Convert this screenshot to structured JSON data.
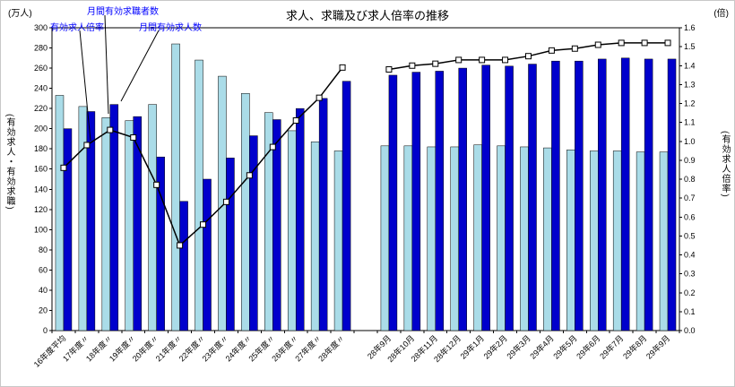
{
  "title": "求人、求職及び求人倍率の推移",
  "axis_units": {
    "left": "(万人)",
    "right": "(倍)"
  },
  "axis_titles": {
    "left": "(有効求人・有効求職)",
    "right": "(有効求人倍率)"
  },
  "annotations": {
    "seekers": "月間有効求職者数",
    "ratio": "有効求人倍率",
    "openings": "月間有効求人数"
  },
  "colors": {
    "seekers_bar": "#aadce8",
    "openings_bar": "#0000cc",
    "ratio_line": "#000000",
    "marker_fill": "#ffffff",
    "annotation_text": "#0000ff",
    "axis": "#000000"
  },
  "chart_data": {
    "type": "bar+line",
    "title": "求人、求職及び求人倍率の推移",
    "left_axis": {
      "label": "(有効求人・有効求職)",
      "unit": "(万人)",
      "min": 0,
      "max": 300,
      "step": 20
    },
    "right_axis": {
      "label": "(有効求人倍率)",
      "unit": "(倍)",
      "min": 0.0,
      "max": 1.6,
      "step": 0.1
    },
    "series_meta": [
      {
        "key": "seekers",
        "name": "月間有効求職者数",
        "type": "bar",
        "axis": "left",
        "color": "#aadce8"
      },
      {
        "key": "openings",
        "name": "月間有効求人数",
        "type": "bar",
        "axis": "left",
        "color": "#0000cc"
      },
      {
        "key": "ratio",
        "name": "有効求人倍率",
        "type": "line",
        "axis": "right",
        "color": "#000000"
      }
    ],
    "groups": [
      {
        "categories": [
          "16年度平均",
          "17年度〃",
          "18年度〃",
          "19年度〃",
          "20年度〃",
          "21年度〃",
          "22年度〃",
          "23年度〃",
          "24年度〃",
          "25年度〃",
          "26年度〃",
          "27年度〃",
          "28年度〃"
        ],
        "seekers": [
          233,
          222,
          211,
          208,
          224,
          284,
          268,
          252,
          235,
          216,
          198,
          187,
          178
        ],
        "openings": [
          200,
          217,
          224,
          212,
          172,
          128,
          150,
          171,
          193,
          209,
          220,
          230,
          247
        ],
        "ratio": [
          0.86,
          0.98,
          1.06,
          1.02,
          0.77,
          0.45,
          0.56,
          0.68,
          0.82,
          0.97,
          1.11,
          1.23,
          1.39
        ]
      },
      {
        "categories": [
          "28年9月",
          "28年10月",
          "28年11月",
          "28年12月",
          "29年1月",
          "29年2月",
          "29年3月",
          "29年4月",
          "29年5月",
          "29年6月",
          "29年7月",
          "29年8月",
          "29年9月"
        ],
        "seekers": [
          183,
          183,
          182,
          182,
          184,
          183,
          182,
          181,
          179,
          178,
          178,
          177,
          177
        ],
        "openings": [
          253,
          256,
          257,
          260,
          263,
          262,
          264,
          267,
          267,
          269,
          270,
          269,
          269
        ],
        "ratio": [
          1.38,
          1.4,
          1.41,
          1.43,
          1.43,
          1.43,
          1.45,
          1.48,
          1.49,
          1.51,
          1.52,
          1.52,
          1.52
        ]
      }
    ],
    "legend_position": "top-left-annotations",
    "grid": false
  }
}
